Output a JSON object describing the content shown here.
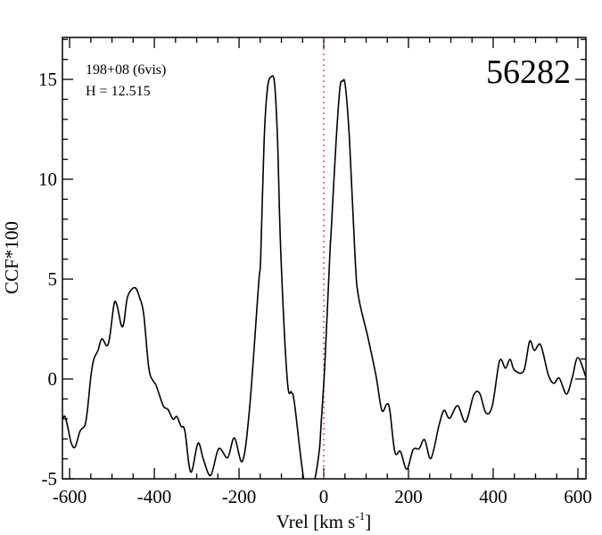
{
  "chart_data": {
    "type": "line",
    "xlabel": "Vrel [km s",
    "xlabel_sup": "-1",
    "xlabel_end": "]",
    "ylabel": "CCF*100",
    "xlim": [
      -617,
      619
    ],
    "ylim": [
      -5,
      17.1
    ],
    "xticks": [
      -600,
      -400,
      -200,
      0,
      200,
      400,
      600
    ],
    "yticks": [
      -5,
      0,
      5,
      10,
      15
    ],
    "x_minor_step": 50,
    "y_minor_step": 1,
    "grid": false,
    "annotations": {
      "id": "56282",
      "line1": "198+08 (6vis)",
      "line2": "H = 12.515"
    },
    "reference_line": {
      "x": 0,
      "color": "#ff4040",
      "style": "dotted"
    },
    "line_color": "#000000",
    "series": [
      {
        "x": [
          -617,
          -611,
          -604,
          -596,
          -587,
          -575,
          -564,
          -558,
          -550,
          -543,
          -533,
          -524,
          -512,
          -505,
          -495,
          -488,
          -478,
          -472,
          -463,
          -446,
          -434,
          -425,
          -413,
          -402,
          -396,
          -379,
          -368,
          -356,
          -347,
          -337,
          -328,
          -314,
          -297,
          -284,
          -267,
          -248,
          -227,
          -211,
          -192,
          -175,
          -154,
          -149,
          -141,
          -133,
          -124,
          -116,
          -109,
          -101,
          -86,
          -76,
          -69,
          -45,
          -25,
          -11,
          -6,
          2,
          15,
          17,
          29,
          38,
          44,
          51,
          61,
          74,
          82,
          105,
          124,
          137,
          149,
          156,
          168,
          181,
          196,
          211,
          225,
          238,
          253,
          272,
          284,
          297,
          316,
          335,
          354,
          368,
          383,
          398,
          415,
          429,
          440,
          450,
          472,
          486,
          497,
          512,
          530,
          543,
          556,
          573,
          587,
          600,
          619
        ],
        "y": [
          -2.01,
          -1.87,
          -2.46,
          -3.22,
          -3.4,
          -2.6,
          -2.33,
          -1.57,
          0.09,
          0.98,
          1.43,
          2.01,
          1.66,
          2.15,
          3.76,
          3.67,
          2.69,
          2.82,
          4.12,
          4.57,
          4.03,
          3.22,
          0.54,
          -0.13,
          -0.31,
          -1.34,
          -1.52,
          -2.01,
          -1.88,
          -2.37,
          -2.6,
          -4.66,
          -3.22,
          -4.03,
          -4.83,
          -3.49,
          -3.94,
          -2.95,
          -4.12,
          -1.43,
          4.7,
          6.04,
          11.86,
          14.55,
          15.13,
          14.77,
          11.86,
          6.04,
          -0.09,
          -0.67,
          -1.25,
          -5.3,
          -5.3,
          -3.67,
          -2.15,
          0.54,
          6.49,
          7.2,
          11.86,
          14.55,
          14.9,
          14.68,
          11.86,
          6.04,
          4.12,
          2.01,
          0.09,
          -1.57,
          -1.25,
          -1.57,
          -3.67,
          -3.63,
          -4.52,
          -3.54,
          -3.49,
          -3.04,
          -3.98,
          -2.33,
          -1.57,
          -1.97,
          -1.34,
          -2.15,
          -0.81,
          -0.72,
          -1.7,
          -1.34,
          0.9,
          0.54,
          0.98,
          0.45,
          0.4,
          1.88,
          1.43,
          1.7,
          0.22,
          -0.22,
          0.04,
          -0.76,
          0.09,
          1.07,
          0.09
        ]
      }
    ]
  }
}
